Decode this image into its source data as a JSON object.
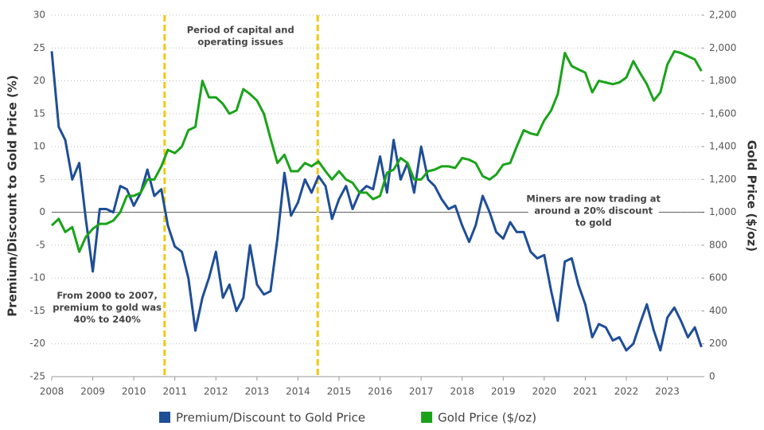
{
  "chart_data": {
    "type": "line",
    "x": [
      2008,
      2008.17,
      2008.33,
      2008.5,
      2008.67,
      2008.83,
      2009,
      2009.17,
      2009.33,
      2009.5,
      2009.67,
      2009.83,
      2010,
      2010.17,
      2010.33,
      2010.5,
      2010.67,
      2010.83,
      2011,
      2011.17,
      2011.33,
      2011.5,
      2011.67,
      2011.83,
      2012,
      2012.17,
      2012.33,
      2012.5,
      2012.67,
      2012.83,
      2013,
      2013.17,
      2013.33,
      2013.5,
      2013.67,
      2013.83,
      2014,
      2014.17,
      2014.33,
      2014.5,
      2014.67,
      2014.83,
      2015,
      2015.17,
      2015.33,
      2015.5,
      2015.67,
      2015.83,
      2016,
      2016.17,
      2016.33,
      2016.5,
      2016.67,
      2016.83,
      2017,
      2017.17,
      2017.33,
      2017.5,
      2017.67,
      2017.83,
      2018,
      2018.17,
      2018.33,
      2018.5,
      2018.67,
      2018.83,
      2019,
      2019.17,
      2019.33,
      2019.5,
      2019.67,
      2019.83,
      2020,
      2020.17,
      2020.33,
      2020.5,
      2020.67,
      2020.83,
      2021,
      2021.17,
      2021.33,
      2021.5,
      2021.67,
      2021.83,
      2022,
      2022.17,
      2022.33,
      2022.5,
      2022.67,
      2022.83,
      2023,
      2023.17,
      2023.33,
      2023.5,
      2023.67,
      2023.83
    ],
    "series": [
      {
        "name": "Premium/Discount to Gold Price",
        "color": "#1f4e96",
        "axis": "y",
        "values": [
          24.5,
          13,
          11,
          5,
          7.5,
          -1,
          -9,
          0.5,
          0.5,
          0,
          4,
          3.5,
          1,
          3,
          6.5,
          2.5,
          3.5,
          -2,
          -5.2,
          -6,
          -10,
          -18,
          -13,
          -10,
          -6,
          -13,
          -11,
          -15,
          -13,
          -5,
          -11,
          -12.5,
          -12,
          -4,
          6,
          -0.5,
          1.5,
          5,
          3,
          5.5,
          4,
          -1,
          2,
          4,
          0.5,
          3,
          4,
          3.5,
          8.5,
          3,
          11,
          5,
          7.5,
          3,
          10,
          5,
          4,
          2,
          0.5,
          1,
          -2,
          -4.5,
          -2,
          2.5,
          0,
          -3,
          -4,
          -1.5,
          -3,
          -3,
          -6,
          -7,
          -6.5,
          -12,
          -16.5,
          -7.5,
          -7,
          -11,
          -14,
          -19,
          -17,
          -17.5,
          -19.5,
          -19,
          -21,
          -20,
          -17,
          -14,
          -18,
          -21,
          -16,
          -14.5,
          -16.5,
          -19,
          -17.5,
          -20.5
        ]
      },
      {
        "name": "Gold Price ($/oz)",
        "color": "#1aa31a",
        "axis": "y2",
        "values": [
          920,
          960,
          880,
          910,
          760,
          850,
          900,
          930,
          930,
          950,
          1000,
          1100,
          1100,
          1120,
          1200,
          1200,
          1280,
          1380,
          1360,
          1400,
          1500,
          1520,
          1800,
          1700,
          1700,
          1660,
          1600,
          1620,
          1750,
          1720,
          1680,
          1600,
          1450,
          1300,
          1350,
          1250,
          1250,
          1300,
          1280,
          1310,
          1250,
          1200,
          1250,
          1200,
          1180,
          1120,
          1120,
          1080,
          1100,
          1240,
          1260,
          1330,
          1300,
          1200,
          1200,
          1250,
          1260,
          1280,
          1280,
          1270,
          1330,
          1320,
          1300,
          1220,
          1200,
          1230,
          1290,
          1300,
          1400,
          1500,
          1480,
          1470,
          1560,
          1620,
          1720,
          1970,
          1890,
          1870,
          1850,
          1730,
          1800,
          1790,
          1780,
          1790,
          1820,
          1920,
          1850,
          1780,
          1680,
          1730,
          1900,
          1980,
          1970,
          1950,
          1930,
          1860
        ]
      }
    ],
    "xlim": [
      2008,
      2023.9
    ],
    "xticks": [
      2008,
      2009,
      2010,
      2011,
      2012,
      2013,
      2014,
      2015,
      2016,
      2017,
      2018,
      2019,
      2020,
      2021,
      2022,
      2023
    ],
    "ylim": [
      -25,
      30
    ],
    "yticks": [
      -25,
      -20,
      -15,
      -10,
      -5,
      0,
      5,
      10,
      15,
      20,
      25,
      30
    ],
    "y2lim": [
      0,
      2200
    ],
    "y2ticks": [
      0,
      200,
      400,
      600,
      800,
      {
        "value": 1000,
        "label": "1,000"
      },
      {
        "value": 1200,
        "label": "1,200"
      },
      {
        "value": 1400,
        "label": "1,400"
      },
      {
        "value": 1600,
        "label": "1,600"
      },
      {
        "value": 1800,
        "label": "1,800"
      },
      {
        "value": 2000,
        "label": "2,000"
      },
      {
        "value": 2200,
        "label": "2,200"
      }
    ],
    "ylabel": "Premium/Discount  to Gold Price (%)",
    "y2label": "Gold Price ($/oz)",
    "grid": true,
    "highlight_x": [
      2010.75,
      2014.48
    ],
    "highlight_color": "#f2c811",
    "annotations": [
      {
        "x": 2012.6,
        "y": 26.8,
        "lines": [
          "Period of capital and",
          "operating issues"
        ]
      },
      {
        "x": 2021.2,
        "y": 0.2,
        "lines": [
          "Miners are now trading at",
          "around a 20% discount",
          "to gold"
        ]
      },
      {
        "x": 2009.35,
        "y": -14.5,
        "lines": [
          "From 2000 to 2007,",
          "premium to gold was",
          "40% to 240%"
        ]
      }
    ]
  }
}
